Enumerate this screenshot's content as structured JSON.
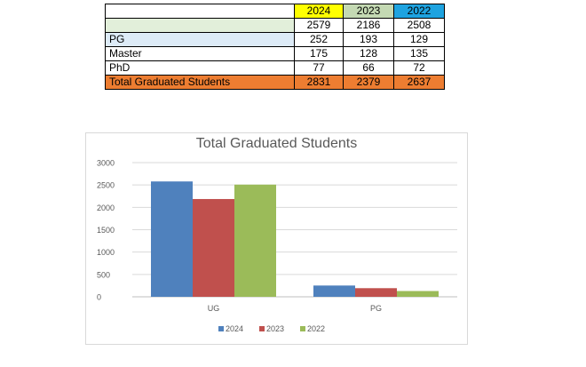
{
  "table": {
    "header": [
      "",
      "2024",
      "2023",
      "2022"
    ],
    "header_colors": [
      "#ffffff",
      "#ffff00",
      "#c4d9b3",
      "#1ea3e0"
    ],
    "rows": [
      {
        "label": "",
        "values": [
          "2579",
          "2186",
          "2508"
        ],
        "label_bg": "#e2efda"
      },
      {
        "label": "PG",
        "values": [
          "252",
          "193",
          "129"
        ],
        "label_bg": "#ddebf7"
      },
      {
        "label": "Master",
        "values": [
          "175",
          "128",
          "135"
        ],
        "label_bg": "#ffffff"
      },
      {
        "label": "PhD",
        "values": [
          "77",
          "66",
          "72"
        ],
        "label_bg": "#ffffff"
      },
      {
        "label": "Total Graduated Students",
        "values": [
          "2831",
          "2379",
          "2637"
        ],
        "label_bg": "#ed7d31",
        "total": true
      }
    ]
  },
  "chart_data": {
    "type": "bar",
    "title": "Total Graduated Students",
    "categories": [
      "UG",
      "PG"
    ],
    "series": [
      {
        "name": "2024",
        "values": [
          2579,
          252
        ],
        "color": "#4f81bd"
      },
      {
        "name": "2023",
        "values": [
          2186,
          193
        ],
        "color": "#c0504d"
      },
      {
        "name": "2022",
        "values": [
          2508,
          129
        ],
        "color": "#9bbb59"
      }
    ],
    "ylim": [
      0,
      3000
    ],
    "yticks": [
      "0",
      "500",
      "1000",
      "1500",
      "2000",
      "2500",
      "3000"
    ],
    "grid": true,
    "legend": "bottom",
    "xlabel": "",
    "ylabel": ""
  }
}
